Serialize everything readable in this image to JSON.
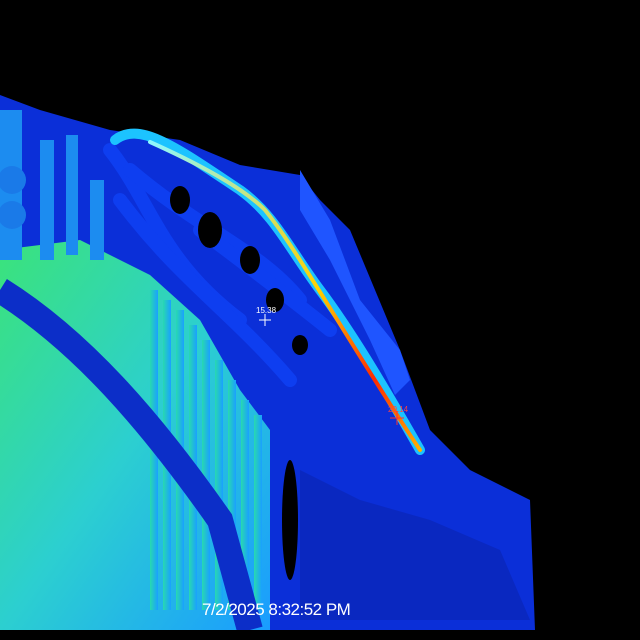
{
  "thermal_view": {
    "timestamp": "7/2/2025 8:32:52 PM",
    "markers": [
      {
        "label": "15.38",
        "color": "#ffffff"
      },
      {
        "label": "20.14",
        "color": "#ff3030"
      }
    ],
    "palette": {
      "background": "#000000",
      "cold": "#0a1aa8",
      "cool": "#1565ff",
      "mid": "#1fd4ff",
      "warm": "#6cf06a",
      "hot": "#ffb000",
      "hottest": "#ff2a00"
    }
  }
}
